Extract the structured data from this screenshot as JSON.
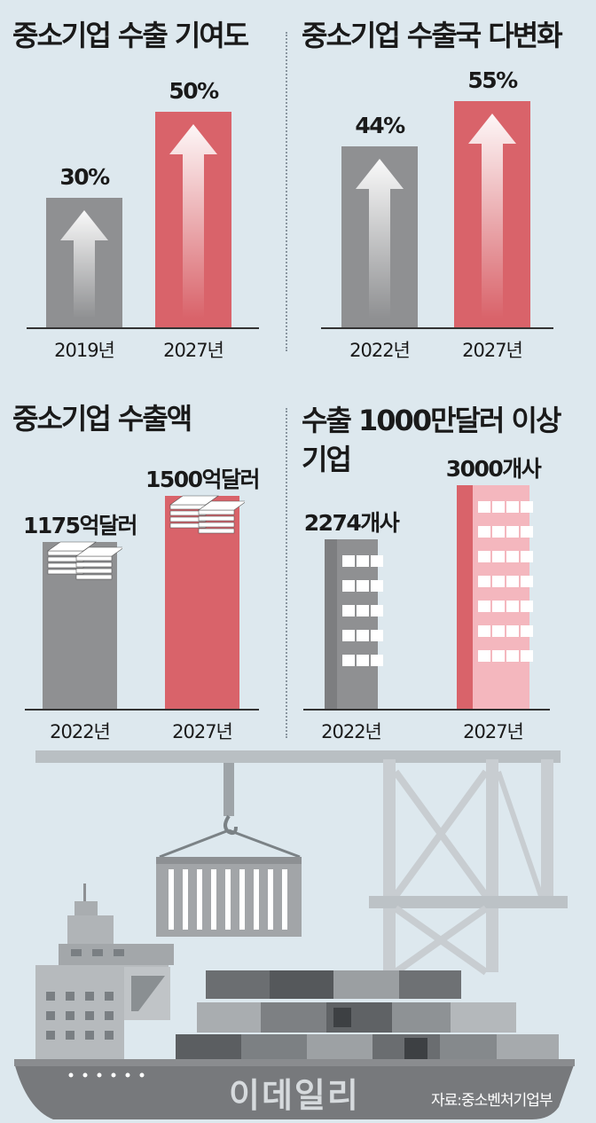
{
  "colors": {
    "gray_bar": "#8f9092",
    "red_bar": "#d9636a",
    "pink_building": "#f4b7be",
    "background": "#dde8ee"
  },
  "icons": {
    "arrow": "up-arrow-icon",
    "money": "money-bundle-icon",
    "building": "building-icon",
    "ship": "container-ship-icon",
    "crane": "crane-icon"
  },
  "chart_data": [
    {
      "type": "bar",
      "title": "중소기업 수출 기여도",
      "categories": [
        "2019년",
        "2027년"
      ],
      "values": [
        30,
        50
      ],
      "value_labels": [
        "30%",
        "50%"
      ],
      "ylim": [
        0,
        50
      ]
    },
    {
      "type": "bar",
      "title": "중소기업 수출국 다변화",
      "categories": [
        "2022년",
        "2027년"
      ],
      "values": [
        44,
        55
      ],
      "value_labels": [
        "44%",
        "55%"
      ],
      "ylim": [
        0,
        55
      ]
    },
    {
      "type": "bar",
      "title": "중소기업 수출액",
      "categories": [
        "2022년",
        "2027년"
      ],
      "values": [
        1175,
        1500
      ],
      "value_labels": [
        "1175억달러",
        "1500억달러"
      ],
      "ylim": [
        0,
        1500
      ]
    },
    {
      "type": "bar",
      "title": "수출 1000만달러 이상 기업",
      "categories": [
        "2022년",
        "2027년"
      ],
      "values": [
        2274,
        3000
      ],
      "value_labels": [
        "2274개사",
        "3000개사"
      ],
      "ylim": [
        0,
        3000
      ]
    }
  ],
  "footer": {
    "watermark": "이데일리",
    "source": "자료:중소벤처기업부"
  }
}
